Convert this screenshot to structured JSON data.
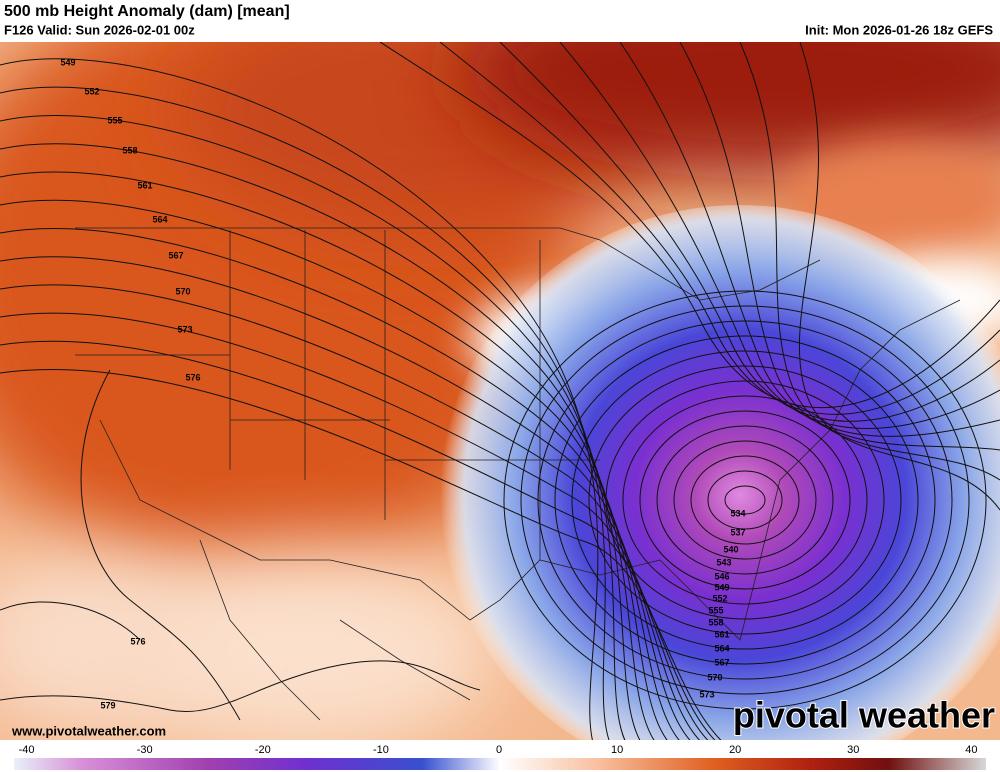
{
  "header": {
    "title": "500 mb Height Anomaly (dam) [mean]",
    "valid": "F126 Valid: Sun 2026-02-01 00z",
    "init": "Init: Mon 2026-01-26 18z GEFS"
  },
  "map": {
    "contour_labels": [
      549,
      552,
      555,
      558,
      561,
      564,
      567,
      570,
      573,
      576,
      576,
      579,
      534,
      537,
      540,
      543,
      546,
      549,
      552,
      555,
      558,
      561,
      564,
      567,
      570,
      573
    ]
  },
  "footer": {
    "website": "www.pivotalweather.com",
    "watermark": "pivotal weather"
  },
  "colorbar": {
    "ticks": [
      -40,
      -30,
      -20,
      -10,
      0,
      10,
      20,
      30,
      40
    ]
  }
}
